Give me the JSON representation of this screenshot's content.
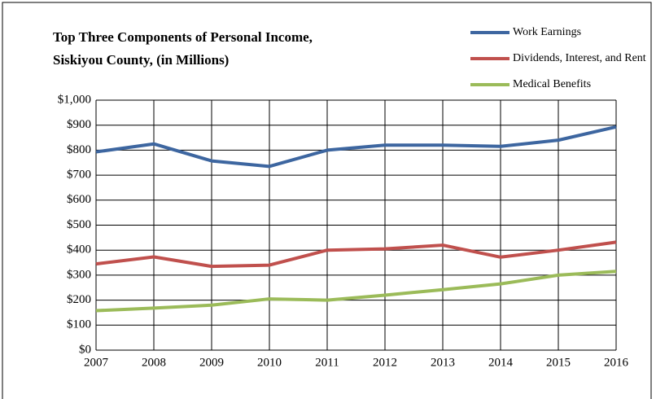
{
  "chart_data": {
    "type": "line",
    "title": [
      "Top Three Components  of Personal Income,",
      "Siskiyou County, (in Millions)"
    ],
    "x": [
      2007,
      2008,
      2009,
      2010,
      2011,
      2012,
      2013,
      2014,
      2015,
      2016
    ],
    "xlim": [
      2007,
      2016
    ],
    "xticks": [
      2007,
      2008,
      2009,
      2010,
      2011,
      2012,
      2013,
      2014,
      2015,
      2016
    ],
    "ylim": [
      0,
      1000
    ],
    "yticks": [
      {
        "value": 0,
        "label": "$0"
      },
      {
        "value": 100,
        "label": "$100"
      },
      {
        "value": 200,
        "label": "$200"
      },
      {
        "value": 300,
        "label": "$300"
      },
      {
        "value": 400,
        "label": "$400"
      },
      {
        "value": 500,
        "label": "$500"
      },
      {
        "value": 600,
        "label": "$600"
      },
      {
        "value": 700,
        "label": "$700"
      },
      {
        "value": 800,
        "label": "$800"
      },
      {
        "value": 900,
        "label": "$900"
      },
      {
        "value": 1000,
        "label": "$1,000"
      }
    ],
    "grid": true,
    "legend": "top-right",
    "series": [
      {
        "name": "Work Earnings",
        "color": "#3d66a0",
        "values": [
          793,
          825,
          757,
          735,
          800,
          820,
          820,
          815,
          840,
          893
        ]
      },
      {
        "name": "Dividends, Interest, and Rent",
        "color": "#c0504d",
        "values": [
          345,
          373,
          335,
          340,
          400,
          405,
          420,
          372,
          400,
          432
        ]
      },
      {
        "name": "Medical Benefits",
        "color": "#9bbb59",
        "values": [
          158,
          168,
          180,
          205,
          200,
          220,
          242,
          265,
          300,
          315
        ]
      }
    ]
  }
}
